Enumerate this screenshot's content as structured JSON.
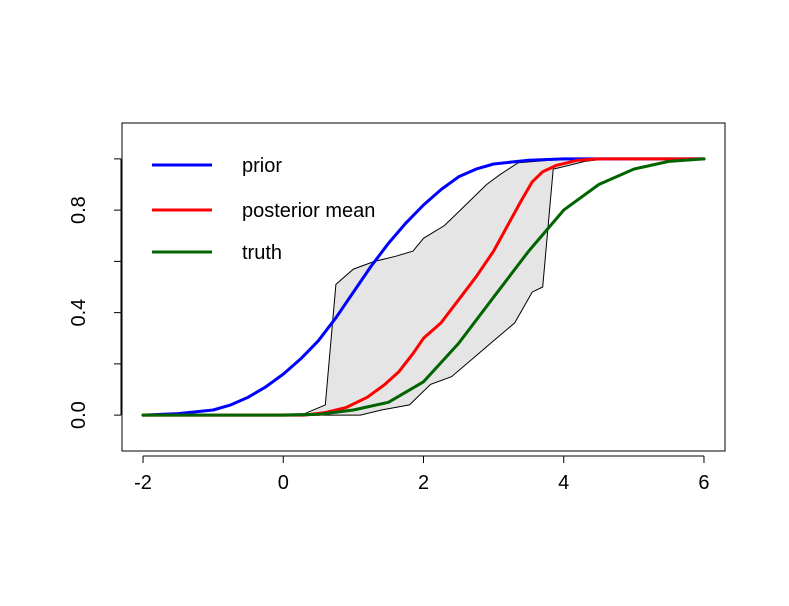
{
  "chart_data": {
    "type": "line",
    "title": "",
    "xlabel": "",
    "ylabel": "",
    "xlim": [
      -2.3,
      6.3
    ],
    "ylim": [
      -0.14,
      1.14
    ],
    "x_ticks": [
      "-2",
      "0",
      "2",
      "4",
      "6"
    ],
    "x_tick_values": [
      -2,
      0,
      2,
      4,
      6
    ],
    "y_ticks": [
      "0.0",
      "0.4",
      "0.8"
    ],
    "y_tick_values": [
      0.0,
      0.4,
      0.8
    ],
    "y_minor_ticks": [
      0.0,
      0.2,
      0.4,
      0.6,
      0.8,
      1.0
    ],
    "grid": false,
    "legend": {
      "position": "top-left",
      "entries": [
        {
          "label": "prior",
          "color": "#0000ff"
        },
        {
          "label": "posterior mean",
          "color": "#ff0000"
        },
        {
          "label": "truth",
          "color": "#006400"
        }
      ]
    },
    "band": {
      "fill": "#e5e5e5",
      "stroke": "#000000",
      "upper": [
        [
          -2,
          0
        ],
        [
          0.3,
          0.005
        ],
        [
          0.6,
          0.04
        ],
        [
          0.75,
          0.51
        ],
        [
          1.0,
          0.57
        ],
        [
          1.3,
          0.6
        ],
        [
          1.6,
          0.62
        ],
        [
          1.85,
          0.64
        ],
        [
          2.0,
          0.69
        ],
        [
          2.3,
          0.74
        ],
        [
          2.6,
          0.82
        ],
        [
          2.9,
          0.9
        ],
        [
          3.1,
          0.94
        ],
        [
          3.35,
          0.985
        ],
        [
          3.8,
          0.995
        ],
        [
          4.3,
          1.0
        ],
        [
          6,
          1.0
        ]
      ],
      "lower": [
        [
          -2,
          0
        ],
        [
          1.1,
          0.0
        ],
        [
          1.4,
          0.02
        ],
        [
          1.8,
          0.04
        ],
        [
          2.1,
          0.12
        ],
        [
          2.4,
          0.15
        ],
        [
          2.7,
          0.22
        ],
        [
          3.0,
          0.29
        ],
        [
          3.3,
          0.36
        ],
        [
          3.55,
          0.48
        ],
        [
          3.7,
          0.5
        ],
        [
          3.85,
          0.96
        ],
        [
          4.0,
          0.97
        ],
        [
          4.3,
          0.99
        ],
        [
          4.6,
          1.0
        ],
        [
          6,
          1.0
        ]
      ]
    },
    "series": [
      {
        "name": "prior",
        "color": "#0000ff",
        "points": [
          [
            -2,
            0.0
          ],
          [
            -1.5,
            0.006
          ],
          [
            -1.0,
            0.02
          ],
          [
            -0.75,
            0.04
          ],
          [
            -0.5,
            0.07
          ],
          [
            -0.25,
            0.11
          ],
          [
            0.0,
            0.16
          ],
          [
            0.25,
            0.22
          ],
          [
            0.5,
            0.29
          ],
          [
            0.75,
            0.38
          ],
          [
            1.0,
            0.48
          ],
          [
            1.25,
            0.58
          ],
          [
            1.5,
            0.67
          ],
          [
            1.75,
            0.75
          ],
          [
            2.0,
            0.82
          ],
          [
            2.25,
            0.88
          ],
          [
            2.5,
            0.93
          ],
          [
            2.75,
            0.96
          ],
          [
            3.0,
            0.98
          ],
          [
            3.5,
            0.995
          ],
          [
            4.0,
            1.0
          ],
          [
            6.0,
            1.0
          ]
        ]
      },
      {
        "name": "posterior mean",
        "color": "#ff0000",
        "points": [
          [
            -2,
            0.0
          ],
          [
            0.3,
            0.0
          ],
          [
            0.6,
            0.01
          ],
          [
            0.9,
            0.03
          ],
          [
            1.2,
            0.07
          ],
          [
            1.45,
            0.12
          ],
          [
            1.65,
            0.17
          ],
          [
            1.85,
            0.24
          ],
          [
            2.0,
            0.3
          ],
          [
            2.25,
            0.36
          ],
          [
            2.5,
            0.45
          ],
          [
            2.75,
            0.54
          ],
          [
            3.0,
            0.64
          ],
          [
            3.2,
            0.74
          ],
          [
            3.4,
            0.84
          ],
          [
            3.55,
            0.91
          ],
          [
            3.7,
            0.95
          ],
          [
            3.9,
            0.975
          ],
          [
            4.2,
            0.995
          ],
          [
            4.5,
            1.0
          ],
          [
            6.0,
            1.0
          ]
        ]
      },
      {
        "name": "truth",
        "color": "#006400",
        "points": [
          [
            -2,
            0.0
          ],
          [
            0.0,
            0.0
          ],
          [
            0.5,
            0.003
          ],
          [
            1.0,
            0.02
          ],
          [
            1.5,
            0.05
          ],
          [
            2.0,
            0.13
          ],
          [
            2.5,
            0.28
          ],
          [
            3.0,
            0.46
          ],
          [
            3.5,
            0.64
          ],
          [
            4.0,
            0.8
          ],
          [
            4.5,
            0.9
          ],
          [
            5.0,
            0.96
          ],
          [
            5.5,
            0.99
          ],
          [
            6.0,
            1.0
          ]
        ]
      }
    ]
  }
}
